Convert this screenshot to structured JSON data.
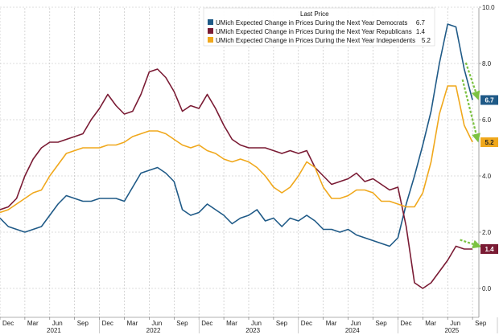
{
  "chart_data": {
    "type": "line",
    "title": "",
    "legend_title": "Last Price",
    "legend_position": "top-right",
    "grid": true,
    "ylim": [
      -1.0,
      10.0
    ],
    "yticks": [
      "0.0",
      "2.0",
      "4.0",
      "6.0",
      "8.0",
      "10.0"
    ],
    "month_ticks": [
      "Dec",
      "Mar",
      "Jun",
      "Sep",
      "Dec",
      "Mar",
      "Jun",
      "Sep",
      "Dec",
      "Mar",
      "Jun",
      "Sep",
      "Dec",
      "Mar",
      "Jun",
      "Sep",
      "Dec",
      "Mar",
      "Jun",
      "Sep"
    ],
    "year_ticks": [
      "2021",
      "2022",
      "2023",
      "2024",
      "2025"
    ],
    "x_start": "2020-12",
    "series": [
      {
        "name": "UMich Expected Change in Prices During the Next Year Democrats",
        "last": "6.7",
        "color": "#1f5a87",
        "values": [
          2.5,
          2.2,
          2.1,
          2.0,
          2.1,
          2.2,
          2.6,
          3.0,
          3.3,
          3.2,
          3.1,
          3.1,
          3.2,
          3.2,
          3.2,
          3.1,
          3.6,
          4.1,
          4.2,
          4.3,
          4.1,
          3.8,
          2.8,
          2.6,
          2.7,
          3.0,
          2.8,
          2.6,
          2.3,
          2.5,
          2.6,
          2.8,
          2.4,
          2.5,
          2.2,
          2.5,
          2.4,
          2.6,
          2.4,
          2.1,
          2.1,
          2.0,
          2.1,
          1.9,
          1.8,
          1.7,
          1.6,
          1.5,
          1.8,
          3.0,
          4.0,
          5.1,
          6.3,
          8.0,
          9.4,
          9.3,
          7.8,
          6.7
        ]
      },
      {
        "name": "UMich Expected Change in Prices During the Next Year Republicans",
        "last": "1.4",
        "color": "#7a1b34",
        "values": [
          2.8,
          2.9,
          3.2,
          4.0,
          4.6,
          5.0,
          5.2,
          5.2,
          5.3,
          5.4,
          5.5,
          6.0,
          6.4,
          6.9,
          6.5,
          6.2,
          6.3,
          6.9,
          7.7,
          7.8,
          7.5,
          7.0,
          6.3,
          6.5,
          6.4,
          6.9,
          6.4,
          5.8,
          5.3,
          5.1,
          5.0,
          5.0,
          5.0,
          4.9,
          4.8,
          4.9,
          4.8,
          4.9,
          4.3,
          4.0,
          3.7,
          3.8,
          3.9,
          4.1,
          3.8,
          3.9,
          3.7,
          3.5,
          3.6,
          2.2,
          0.2,
          0.0,
          0.2,
          0.6,
          1.0,
          1.5,
          1.4,
          1.4
        ]
      },
      {
        "name": "UMich Expected Change in Prices During the Next Year Independents",
        "last": "5.2",
        "color": "#f0a81c",
        "values": [
          2.7,
          2.8,
          3.0,
          3.2,
          3.4,
          3.5,
          4.0,
          4.4,
          4.8,
          4.9,
          5.0,
          5.0,
          5.0,
          5.1,
          5.1,
          5.2,
          5.4,
          5.5,
          5.6,
          5.6,
          5.5,
          5.3,
          5.1,
          5.0,
          5.1,
          4.9,
          4.8,
          4.6,
          4.5,
          4.6,
          4.5,
          4.3,
          4.0,
          3.6,
          3.4,
          3.6,
          4.0,
          4.5,
          4.3,
          3.6,
          3.2,
          3.2,
          3.3,
          3.5,
          3.5,
          3.4,
          3.1,
          3.1,
          3.0,
          2.9,
          2.9,
          3.4,
          4.5,
          6.2,
          7.2,
          7.2,
          5.8,
          5.2
        ]
      }
    ]
  },
  "legend": {
    "title": "Last Price"
  },
  "arrows": {
    "color": "#7cc242"
  }
}
